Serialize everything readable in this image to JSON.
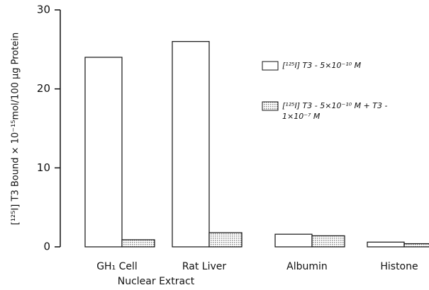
{
  "chart_data": {
    "type": "bar",
    "y_label": "[¹²⁵I] T3 Bound × 10⁻¹⁵mol/100 μg Protein",
    "x_label": "Nuclear Extract",
    "categories": [
      "GH₁ Cell",
      "Rat Liver",
      "Albumin",
      "Histone"
    ],
    "series": [
      {
        "name": "[¹²⁵I] T3 - 5×10⁻¹⁰ M",
        "color": "#ffffff",
        "values": [
          24,
          26,
          1.6,
          0.6
        ]
      },
      {
        "name": "[¹²⁵I] T3 - 5×10⁻¹⁰ M + T3 - 1×10⁻⁷ M",
        "color": "#8a8a8a",
        "values": [
          0.9,
          1.8,
          1.4,
          0.4
        ]
      }
    ],
    "ylim": [
      0,
      30
    ],
    "yticks": [
      0,
      10,
      20,
      30
    ],
    "grid": false
  }
}
